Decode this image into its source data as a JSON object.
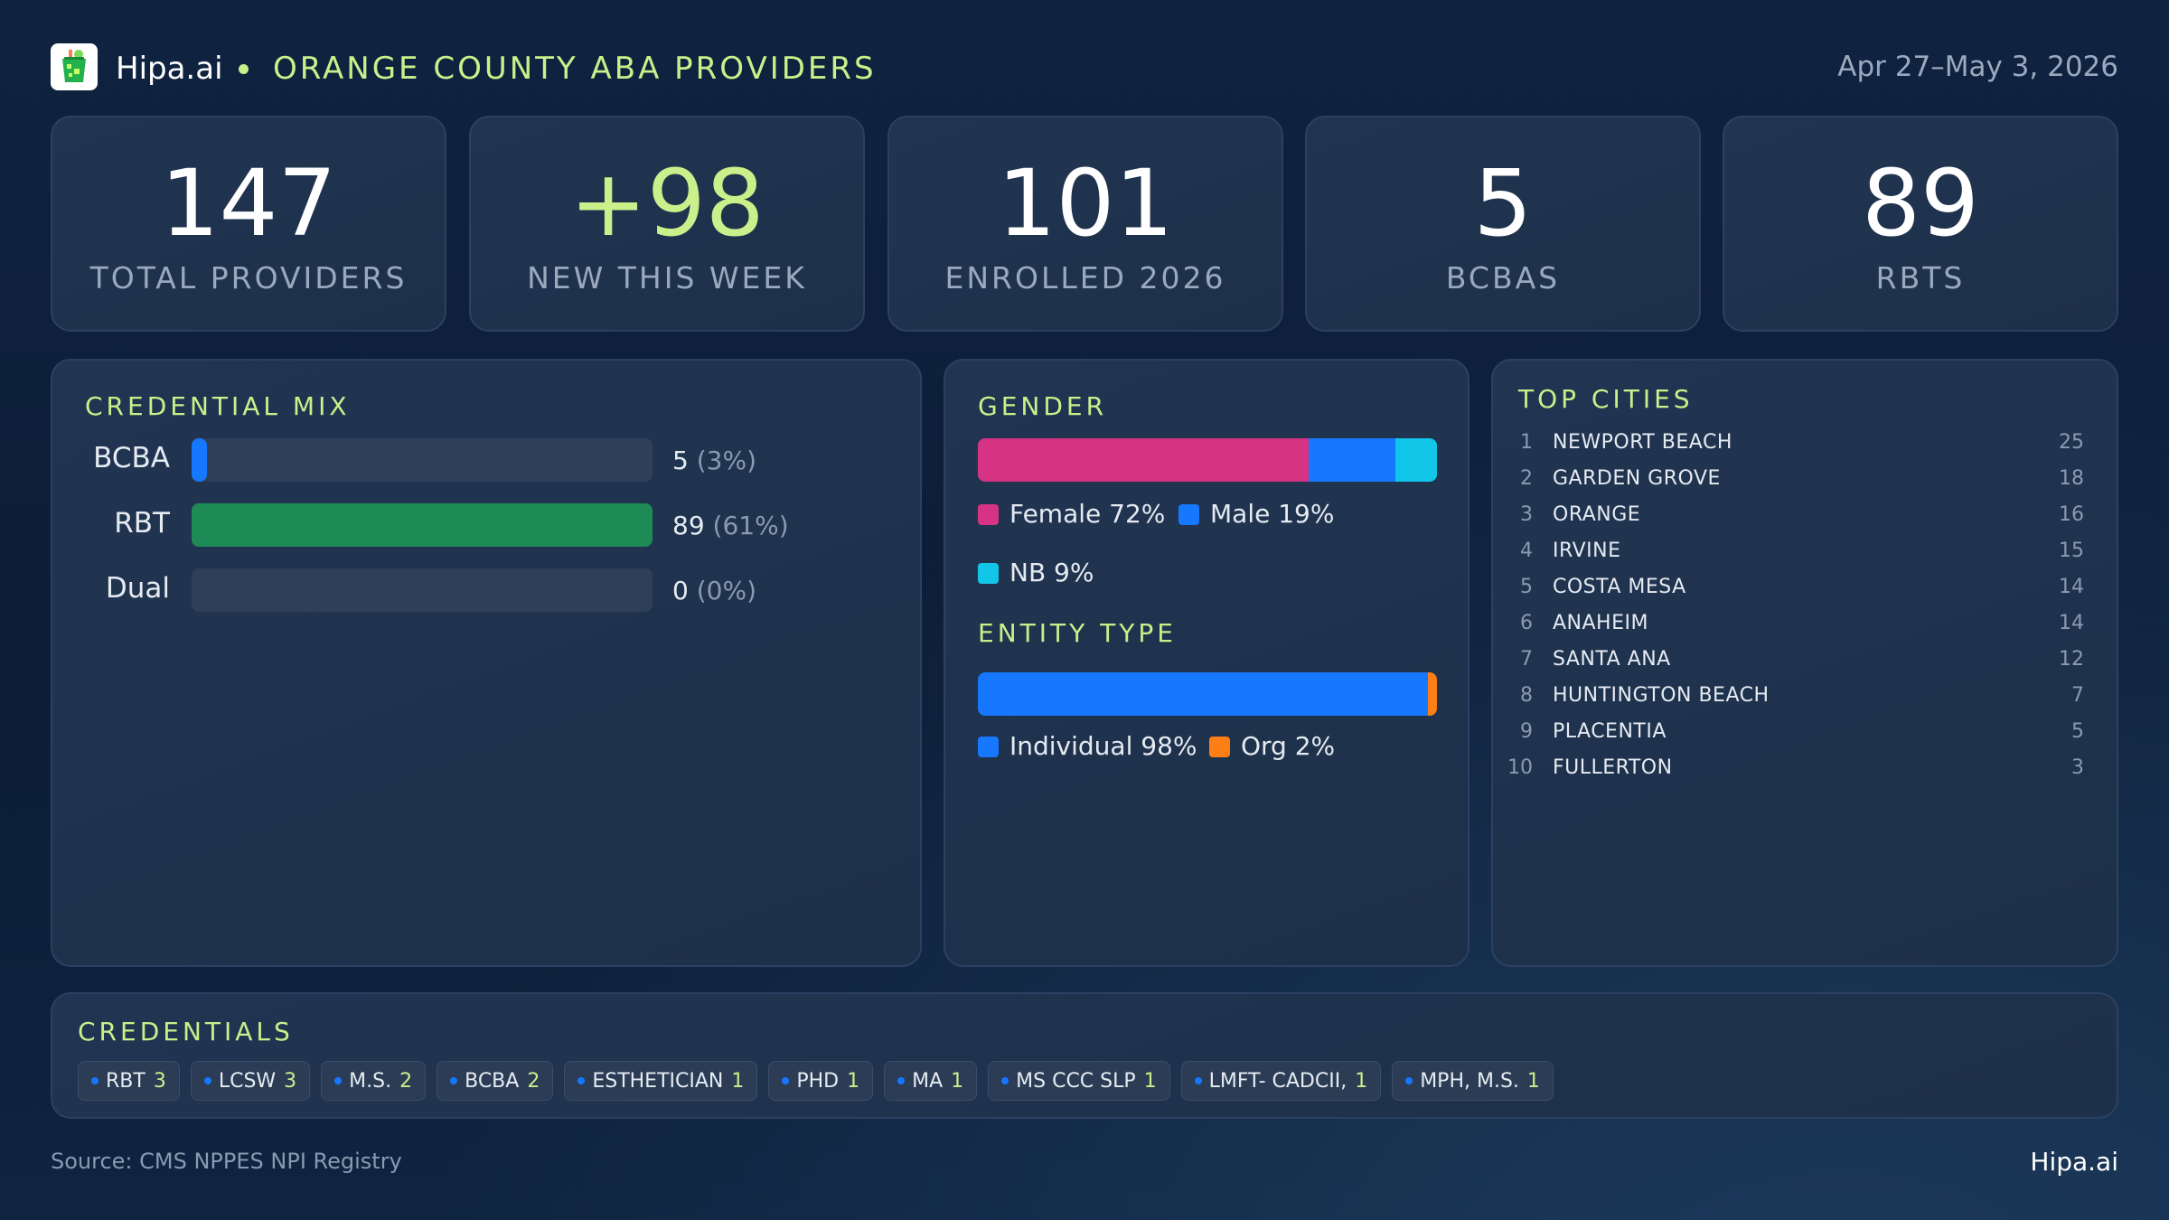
{
  "header": {
    "brand": "Hipa.ai",
    "title": "ORANGE COUNTY ABA PROVIDERS",
    "date_range": "Apr 27–May 3, 2026",
    "logo_icon": "cup-icon"
  },
  "kpis": [
    {
      "value": "147",
      "label": "TOTAL PROVIDERS"
    },
    {
      "value": "+98",
      "label": "NEW THIS WEEK"
    },
    {
      "value": "101",
      "label": "ENROLLED 2026"
    },
    {
      "value": "5",
      "label": "BCBAS"
    },
    {
      "value": "89",
      "label": "RBTS"
    }
  ],
  "credential_mix": {
    "title": "CREDENTIAL MIX",
    "rows": [
      {
        "label": "BCBA",
        "count": "5",
        "pct": "(3%)",
        "fraction": 0.034,
        "color": "#1677ff"
      },
      {
        "label": "RBT",
        "count": "89",
        "pct": "(61%)",
        "fraction": 1.0,
        "color": "#1e8a55"
      },
      {
        "label": "Dual",
        "count": "0",
        "pct": "(0%)",
        "fraction": 0,
        "color": "#2e3f57"
      }
    ]
  },
  "gender": {
    "title": "GENDER",
    "segments": [
      {
        "label": "Female 72%",
        "value": 72,
        "color": "#d63384"
      },
      {
        "label": "Male 19%",
        "value": 19,
        "color": "#1677ff"
      },
      {
        "label": "NB 9%",
        "value": 9,
        "color": "#12c6ea"
      }
    ]
  },
  "entity_type": {
    "title": "ENTITY TYPE",
    "segments": [
      {
        "label": "Individual 98%",
        "value": 98,
        "color": "#1677ff"
      },
      {
        "label": "Org 2%",
        "value": 2,
        "color": "#fd7e14"
      }
    ]
  },
  "top_cities": {
    "title": "TOP CITIES",
    "rows": [
      {
        "rank": "1",
        "name": "NEWPORT BEACH",
        "count": "25"
      },
      {
        "rank": "2",
        "name": "GARDEN GROVE",
        "count": "18"
      },
      {
        "rank": "3",
        "name": "ORANGE",
        "count": "16"
      },
      {
        "rank": "4",
        "name": "IRVINE",
        "count": "15"
      },
      {
        "rank": "5",
        "name": "COSTA MESA",
        "count": "14"
      },
      {
        "rank": "6",
        "name": "ANAHEIM",
        "count": "14"
      },
      {
        "rank": "7",
        "name": "SANTA ANA",
        "count": "12"
      },
      {
        "rank": "8",
        "name": "HUNTINGTON BEACH",
        "count": "7"
      },
      {
        "rank": "9",
        "name": "PLACENTIA",
        "count": "5"
      },
      {
        "rank": "10",
        "name": "FULLERTON",
        "count": "3"
      }
    ]
  },
  "credentials": {
    "title": "CREDENTIALS",
    "chips": [
      {
        "label": "RBT",
        "count": "3"
      },
      {
        "label": "LCSW",
        "count": "3"
      },
      {
        "label": "M.S.",
        "count": "2"
      },
      {
        "label": "BCBA",
        "count": "2"
      },
      {
        "label": "ESTHETICIAN",
        "count": "1"
      },
      {
        "label": "PHD",
        "count": "1"
      },
      {
        "label": "MA",
        "count": "1"
      },
      {
        "label": "MS CCC SLP",
        "count": "1"
      },
      {
        "label": "LMFT- CADCII,",
        "count": "1"
      },
      {
        "label": "MPH, M.S.",
        "count": "1"
      }
    ]
  },
  "footer": {
    "source": "Source: CMS NPPES NPI Registry",
    "brand": "Hipa.ai"
  }
}
